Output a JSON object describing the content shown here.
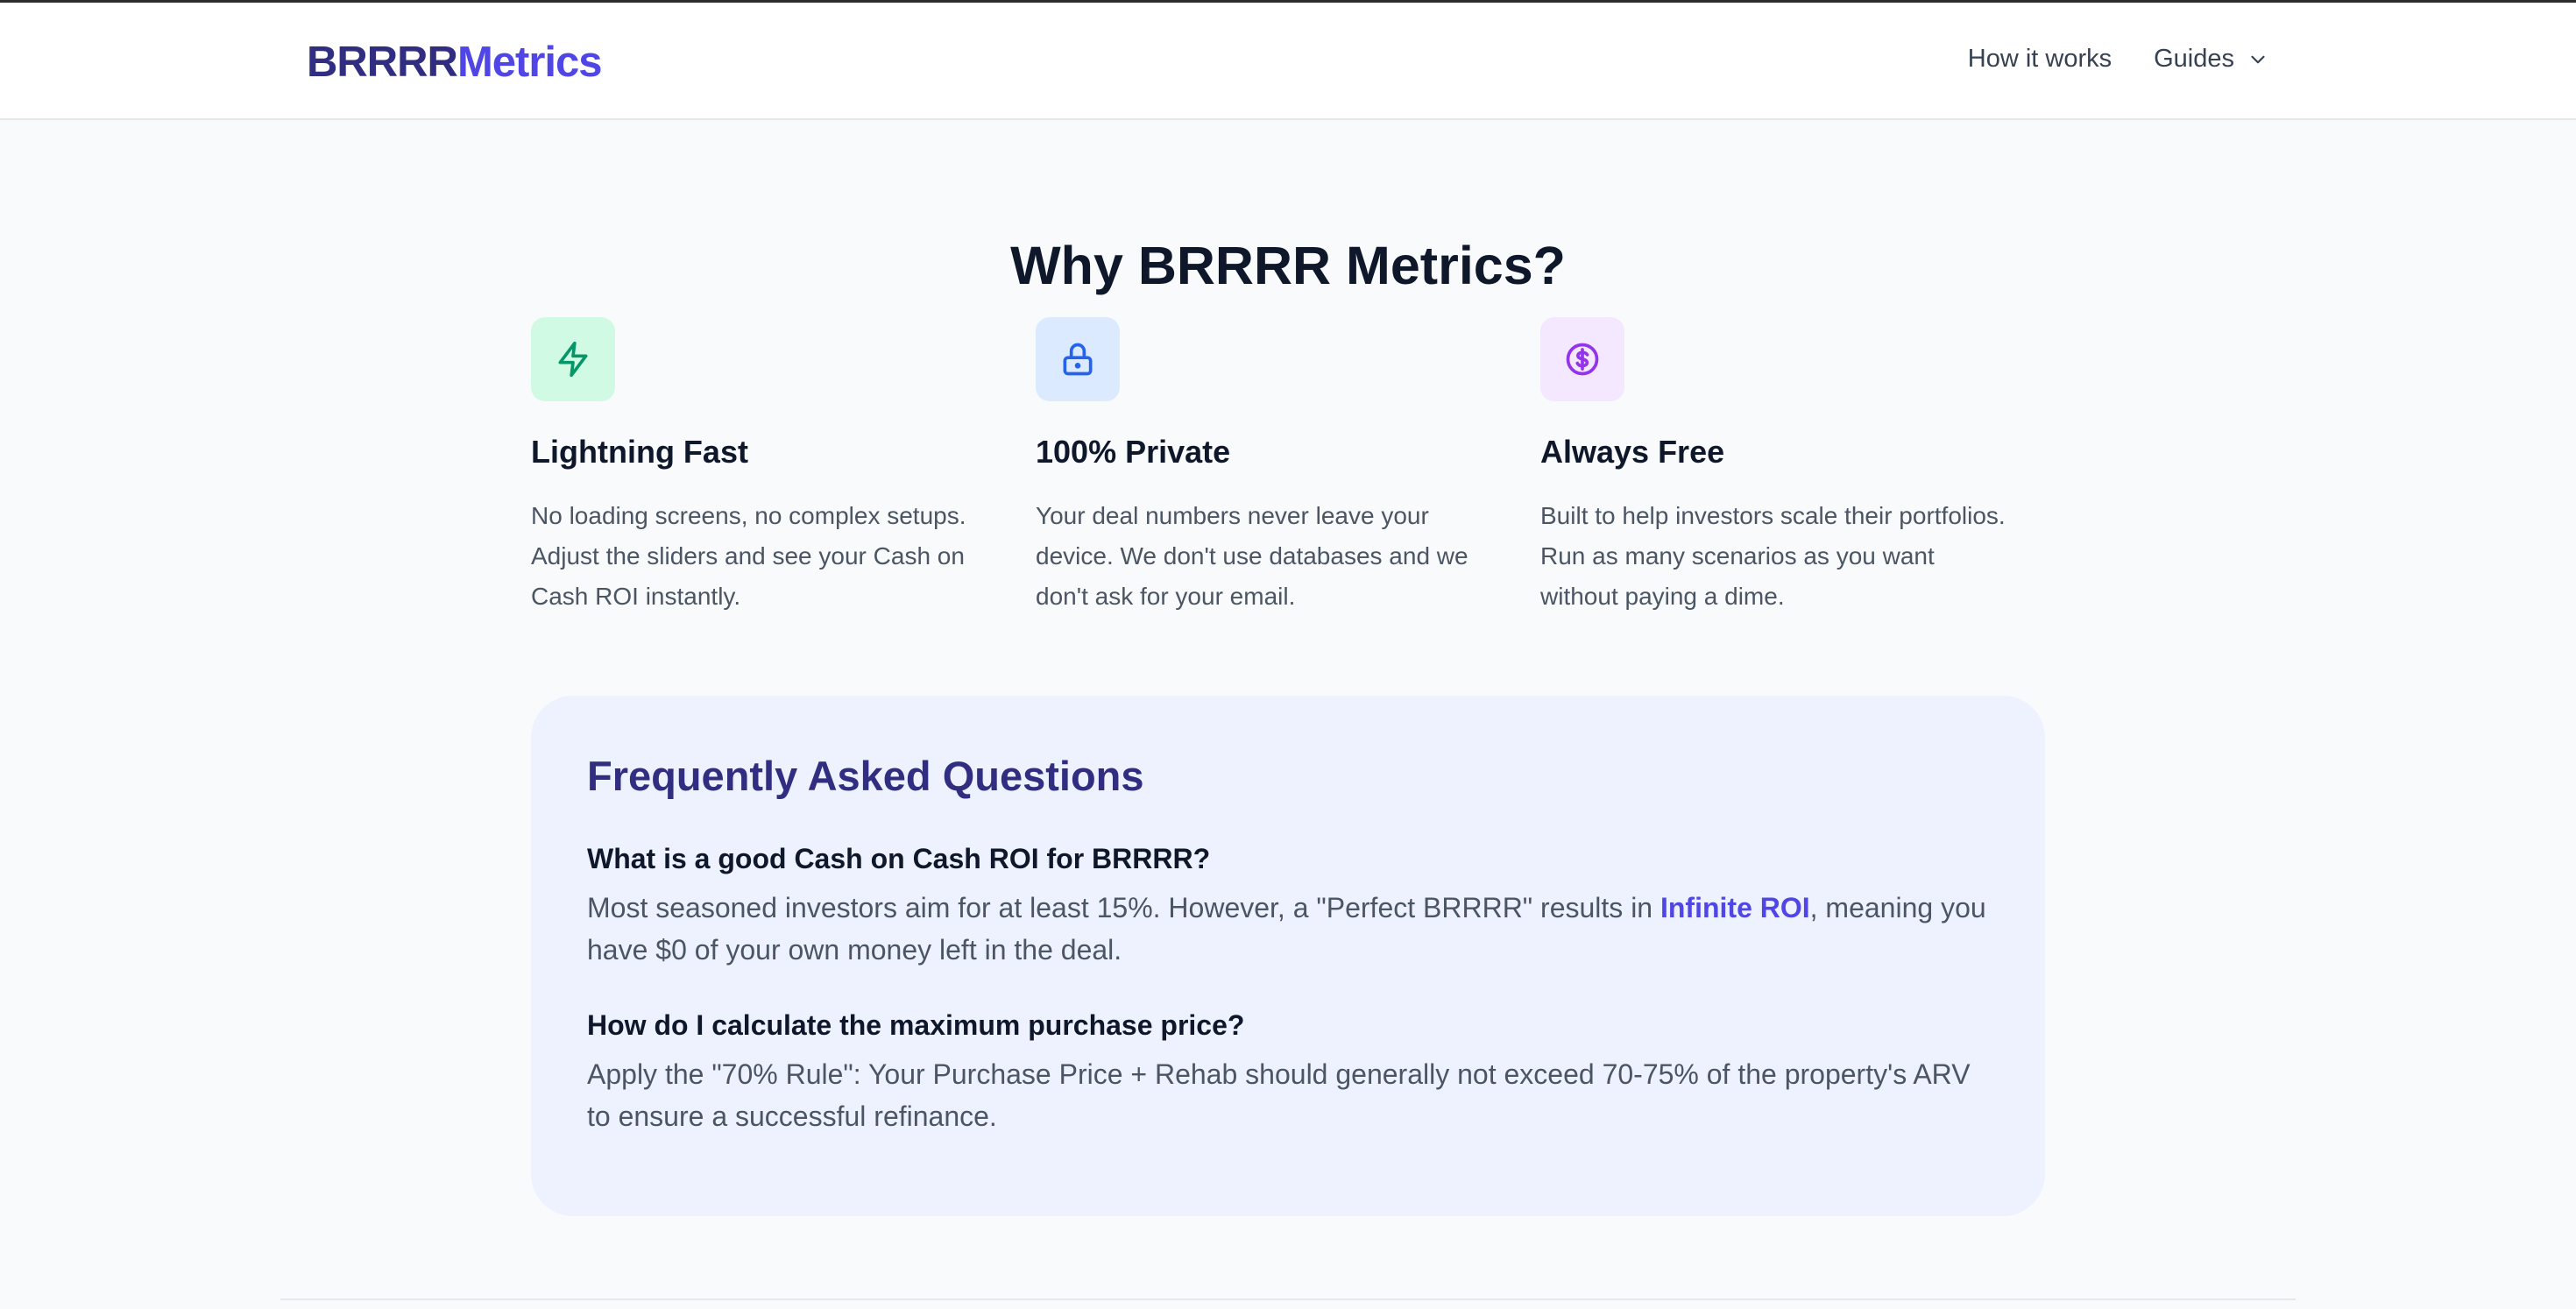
{
  "header": {
    "logo_part1": "BRRRR",
    "logo_part2": "Metrics",
    "nav": [
      {
        "label": "How it works"
      },
      {
        "label": "Guides",
        "icon": "chevron-down-icon"
      }
    ]
  },
  "why": {
    "title": "Why BRRRR Metrics?",
    "features": [
      {
        "icon": "lightning-icon",
        "icon_bg": "#d1fae5",
        "icon_color": "#059669",
        "title": "Lightning Fast",
        "text": "No loading screens, no complex setups. Adjust the sliders and see your Cash on Cash ROI instantly."
      },
      {
        "icon": "lock-icon",
        "icon_bg": "#dbeafe",
        "icon_color": "#2563eb",
        "title": "100% Private",
        "text": "Your deal numbers never leave your device. We don't use databases and we don't ask for your email."
      },
      {
        "icon": "dollar-circle-icon",
        "icon_bg": "#f3e8ff",
        "icon_color": "#9333ea",
        "title": "Always Free",
        "text": "Built to help investors scale their portfolios. Run as many scenarios as you want without paying a dime."
      }
    ]
  },
  "faq": {
    "title": "Frequently Asked Questions",
    "items": [
      {
        "question": "What is a good Cash on Cash ROI for BRRRR?",
        "answer_before": "Most seasoned investors aim for at least 15%. However, a \"Perfect BRRRR\" results in ",
        "answer_highlight": "Infinite ROI",
        "answer_after": ", meaning you have $0 of your own money left in the deal."
      },
      {
        "question": "How do I calculate the maximum purchase price?",
        "answer": "Apply the \"70% Rule\": Your Purchase Price + Rehab should generally not exceed 70-75% of the property's ARV to ensure a successful refinance."
      }
    ]
  },
  "colors": {
    "brand_dark": "#312e81",
    "brand": "#4f46e5",
    "faq_bg": "#eef2ff"
  }
}
